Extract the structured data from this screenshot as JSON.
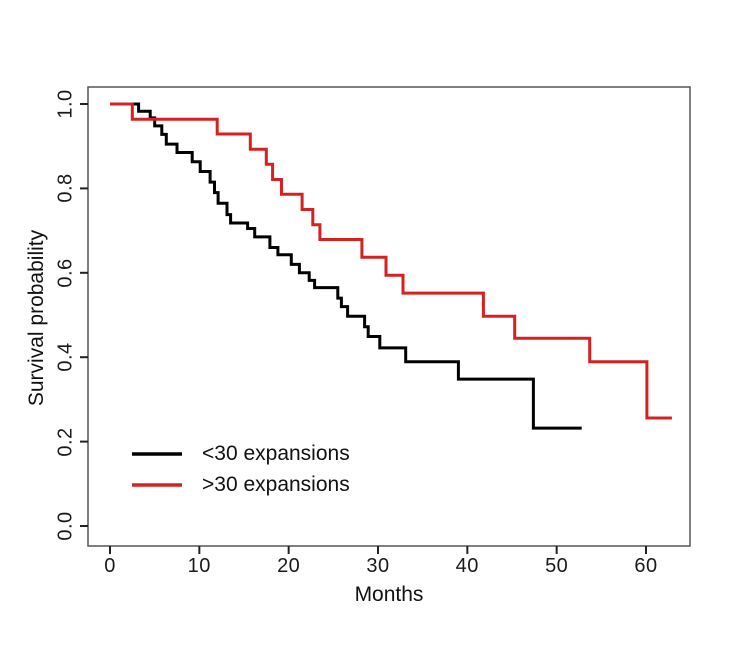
{
  "figure": {
    "background_color": "#ffffff",
    "box_color": "#555555",
    "tick_color": "#222222"
  },
  "chart_data": {
    "type": "line",
    "subtype": "kaplan-meier-step",
    "title": "",
    "xlabel": "Months",
    "ylabel": "Survival probability",
    "xlim": [
      0,
      65
    ],
    "ylim": [
      0.0,
      1.0
    ],
    "grid": false,
    "legend_position": "inside-bottom-left",
    "x_ticks": [
      0,
      10,
      20,
      30,
      40,
      50,
      60
    ],
    "y_tick_labels": [
      "1.0",
      "0.8",
      "0.6",
      "0.4",
      "0.2",
      "0.0"
    ],
    "y_tick_values": [
      1.0,
      0.8,
      0.6,
      0.4,
      0.2,
      0.0
    ],
    "series": [
      {
        "name": "<30 expansions",
        "color": "#000000",
        "end_t": 52.8,
        "points": [
          [
            0,
            1.0
          ],
          [
            3.2,
            0.983
          ],
          [
            4.5,
            0.967
          ],
          [
            5.0,
            0.948
          ],
          [
            5.8,
            0.928
          ],
          [
            6.3,
            0.905
          ],
          [
            7.5,
            0.885
          ],
          [
            9.2,
            0.863
          ],
          [
            10.1,
            0.84
          ],
          [
            11.2,
            0.815
          ],
          [
            11.7,
            0.79
          ],
          [
            12.1,
            0.765
          ],
          [
            13.1,
            0.738
          ],
          [
            13.5,
            0.718
          ],
          [
            15.4,
            0.705
          ],
          [
            16.2,
            0.685
          ],
          [
            17.9,
            0.66
          ],
          [
            18.8,
            0.643
          ],
          [
            20.3,
            0.62
          ],
          [
            21.2,
            0.6
          ],
          [
            22.3,
            0.582
          ],
          [
            22.9,
            0.565
          ],
          [
            25.5,
            0.54
          ],
          [
            25.9,
            0.52
          ],
          [
            26.6,
            0.497
          ],
          [
            28.5,
            0.472
          ],
          [
            28.9,
            0.449
          ],
          [
            30.2,
            0.422
          ],
          [
            33.1,
            0.389
          ],
          [
            39.0,
            0.348
          ],
          [
            47.4,
            0.232
          ]
        ]
      },
      {
        "name": ">30 expansions",
        "color": "#d42121",
        "end_t": 62.9,
        "points": [
          [
            0,
            1.0
          ],
          [
            2.5,
            0.964
          ],
          [
            12.0,
            0.929
          ],
          [
            15.7,
            0.893
          ],
          [
            17.5,
            0.857
          ],
          [
            18.2,
            0.821
          ],
          [
            19.2,
            0.786
          ],
          [
            21.5,
            0.75
          ],
          [
            22.7,
            0.714
          ],
          [
            23.5,
            0.679
          ],
          [
            28.2,
            0.637
          ],
          [
            30.9,
            0.594
          ],
          [
            32.8,
            0.552
          ],
          [
            41.8,
            0.497
          ],
          [
            45.3,
            0.445
          ],
          [
            53.7,
            0.389
          ],
          [
            60.1,
            0.256
          ]
        ]
      }
    ]
  }
}
